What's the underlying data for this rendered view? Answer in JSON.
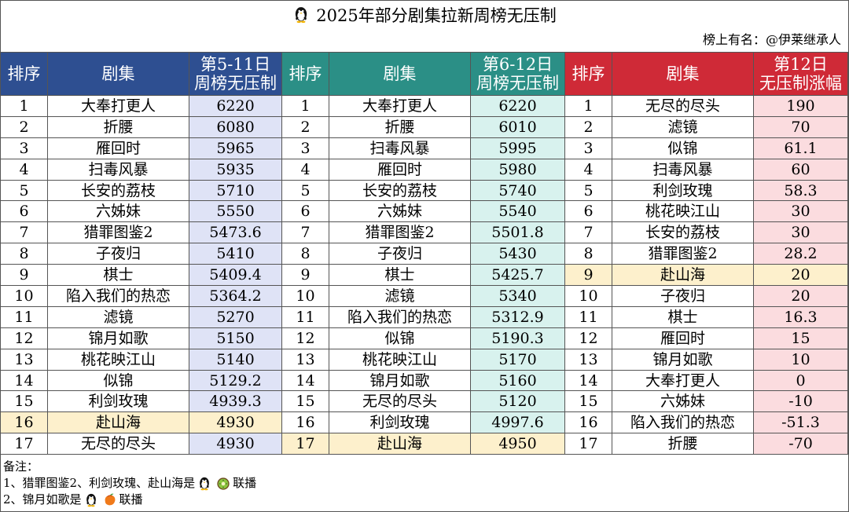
{
  "title": "2025年部分剧集拉新周榜无压制",
  "subtitle": "榜上有名：@伊莱继承人",
  "headers": {
    "rank": "排序",
    "drama": "剧集",
    "week1_line1": "第5-11日",
    "week1_line2": "周榜无压制",
    "week2_line1": "第6-12日",
    "week2_line2": "周榜无压制",
    "delta_line1": "第12日",
    "delta_line2": "无压制涨幅"
  },
  "table1": [
    {
      "rank": "1",
      "drama": "大奉打更人",
      "value": "6220"
    },
    {
      "rank": "2",
      "drama": "折腰",
      "value": "6080"
    },
    {
      "rank": "3",
      "drama": "雁回时",
      "value": "5965"
    },
    {
      "rank": "4",
      "drama": "扫毒风暴",
      "value": "5935"
    },
    {
      "rank": "5",
      "drama": "长安的荔枝",
      "value": "5710"
    },
    {
      "rank": "6",
      "drama": "六姊妹",
      "value": "5550"
    },
    {
      "rank": "7",
      "drama": "猎罪图鉴2",
      "value": "5473.6"
    },
    {
      "rank": "8",
      "drama": "子夜归",
      "value": "5410"
    },
    {
      "rank": "9",
      "drama": "棋士",
      "value": "5409.4"
    },
    {
      "rank": "10",
      "drama": "陷入我们的热恋",
      "value": "5364.2"
    },
    {
      "rank": "11",
      "drama": "滤镜",
      "value": "5270"
    },
    {
      "rank": "12",
      "drama": "锦月如歌",
      "value": "5150"
    },
    {
      "rank": "13",
      "drama": "桃花映江山",
      "value": "5140"
    },
    {
      "rank": "14",
      "drama": "似锦",
      "value": "5129.2"
    },
    {
      "rank": "15",
      "drama": "利剑玫瑰",
      "value": "4939.3"
    },
    {
      "rank": "16",
      "drama": "赴山海",
      "value": "4930"
    },
    {
      "rank": "17",
      "drama": "无尽的尽头",
      "value": "4930"
    }
  ],
  "table2": [
    {
      "rank": "1",
      "drama": "大奉打更人",
      "value": "6220"
    },
    {
      "rank": "2",
      "drama": "折腰",
      "value": "6010"
    },
    {
      "rank": "3",
      "drama": "扫毒风暴",
      "value": "5995"
    },
    {
      "rank": "4",
      "drama": "雁回时",
      "value": "5980"
    },
    {
      "rank": "5",
      "drama": "长安的荔枝",
      "value": "5740"
    },
    {
      "rank": "6",
      "drama": "六姊妹",
      "value": "5540"
    },
    {
      "rank": "7",
      "drama": "猎罪图鉴2",
      "value": "5501.8"
    },
    {
      "rank": "8",
      "drama": "子夜归",
      "value": "5430"
    },
    {
      "rank": "9",
      "drama": "棋士",
      "value": "5425.7"
    },
    {
      "rank": "10",
      "drama": "滤镜",
      "value": "5340"
    },
    {
      "rank": "11",
      "drama": "陷入我们的热恋",
      "value": "5312.9"
    },
    {
      "rank": "12",
      "drama": "似锦",
      "value": "5190.3"
    },
    {
      "rank": "13",
      "drama": "桃花映江山",
      "value": "5170"
    },
    {
      "rank": "14",
      "drama": "锦月如歌",
      "value": "5160"
    },
    {
      "rank": "15",
      "drama": "无尽的尽头",
      "value": "5120"
    },
    {
      "rank": "16",
      "drama": "利剑玫瑰",
      "value": "4997.6"
    },
    {
      "rank": "17",
      "drama": "赴山海",
      "value": "4950"
    }
  ],
  "table3": [
    {
      "rank": "1",
      "drama": "无尽的尽头",
      "value": "190"
    },
    {
      "rank": "2",
      "drama": "滤镜",
      "value": "70"
    },
    {
      "rank": "3",
      "drama": "似锦",
      "value": "61.1"
    },
    {
      "rank": "4",
      "drama": "扫毒风暴",
      "value": "60"
    },
    {
      "rank": "5",
      "drama": "利剑玫瑰",
      "value": "58.3"
    },
    {
      "rank": "6",
      "drama": "桃花映江山",
      "value": "30"
    },
    {
      "rank": "7",
      "drama": "长安的荔枝",
      "value": "30"
    },
    {
      "rank": "8",
      "drama": "猎罪图鉴2",
      "value": "28.2"
    },
    {
      "rank": "9",
      "drama": "赴山海",
      "value": "20"
    },
    {
      "rank": "10",
      "drama": "子夜归",
      "value": "20"
    },
    {
      "rank": "11",
      "drama": "棋士",
      "value": "16.3"
    },
    {
      "rank": "12",
      "drama": "雁回时",
      "value": "15"
    },
    {
      "rank": "13",
      "drama": "锦月如歌",
      "value": "10"
    },
    {
      "rank": "14",
      "drama": "大奉打更人",
      "value": "0"
    },
    {
      "rank": "15",
      "drama": "六姊妹",
      "value": "-10"
    },
    {
      "rank": "16",
      "drama": "陷入我们的热恋",
      "value": "-51.3"
    },
    {
      "rank": "17",
      "drama": "折腰",
      "value": "-70"
    }
  ],
  "highlight": {
    "table1_row": 16,
    "table2_row": 17,
    "table3_row": 9
  },
  "notes": {
    "label": "备注：",
    "line1_text": "1、猎罪图鉴2、利剑玫瑰、赴山海是",
    "line1_suffix": "联播",
    "line1_icons": [
      "penguin-icon",
      "kiwi-icon"
    ],
    "line2_text": "2、锦月如歌是",
    "line2_suffix": "联播",
    "line2_icons": [
      "penguin-icon",
      "mango-icon"
    ]
  },
  "colors": {
    "header_week1": "#2e4f91",
    "header_week2": "#2b8f86",
    "header_delta": "#cf2a37",
    "cell_week1": "#dfe3f6",
    "cell_week2": "#d8f2ee",
    "cell_delta": "#fbdcdf",
    "cell_highlight": "#fdf0cc"
  }
}
